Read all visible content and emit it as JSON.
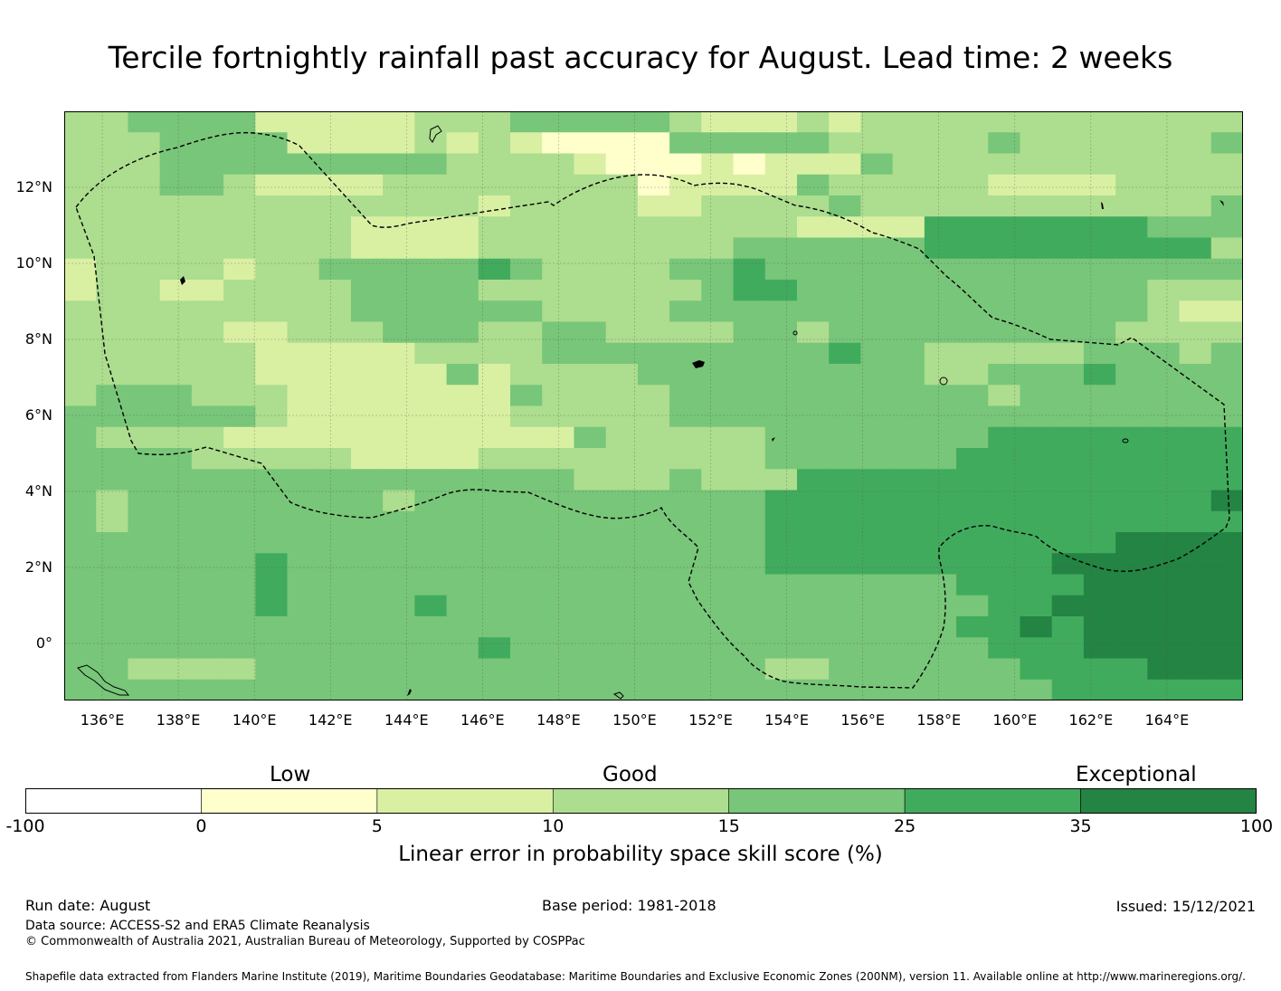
{
  "title": "Tercile fortnightly rainfall past accuracy for August. Lead time: 2 weeks",
  "map": {
    "lon_range": [
      135,
      166
    ],
    "lat_range": [
      -1.5,
      14
    ],
    "lon_ticks": [
      "136°E",
      "138°E",
      "140°E",
      "142°E",
      "144°E",
      "146°E",
      "148°E",
      "150°E",
      "152°E",
      "154°E",
      "156°E",
      "158°E",
      "160°E",
      "162°E",
      "164°E"
    ],
    "lat_ticks": [
      "12°N",
      "10°N",
      "8°N",
      "6°N",
      "4°N",
      "2°N",
      "0°"
    ],
    "gridlines": true,
    "boundary_style": "dashed",
    "grid_columns": 37,
    "grid_rows": 28,
    "cells": [
      "3344442222233344444322232333333333333",
      "3334444222232321111444443333343333334",
      "3334444444443333211121222433333333333",
      "3334432222333333331222243333322223333",
      "3333333333333233332233334333333333334",
      "3333333332222333333333322225555555444",
      "3333333332222333333334444445555555553",
      "2333323344444543333445444444444444444",
      "2332233334444333333345544444444444333",
      "3333333334444443333444444444444444322",
      "3333322333444334433334434444444443333",
      "3333332222233334444444445443333344434",
      "3333332222224233334444444443344454444",
      "3444333222222243333444444444434444444",
      "4444443222222233333444444444444444444",
      "4333322222222222433333444444455555555",
      "4444333332222333333333444444555555555",
      "4444444444444444333433355555555555555",
      "4344444444344444444444555555555555556",
      "4344444444444444444444555555555555555",
      "4444444444444444444444555555555556666",
      "4444445444444444444444555555555666666",
      "4444445444444444444444444444555566666",
      "4444445444454444444444444444455666666",
      "4444444444444444444444444444556566666",
      "4444444444444544444444444444455566666",
      "4433334444444444444444334444445555666",
      "4444444444444444444444444444444555555"
    ]
  },
  "colorbar": {
    "colors": [
      "#ffffff",
      "#ffffcc",
      "#d9f0a3",
      "#addd8e",
      "#78c679",
      "#41ab5d",
      "#238443"
    ],
    "ticks": [
      "-100",
      "0",
      "5",
      "10",
      "15",
      "25",
      "35",
      "100"
    ],
    "categories": [
      "Low",
      "Good",
      "Exceptional"
    ],
    "label": "Linear error in probability space skill score (%)"
  },
  "footer": {
    "run_date": "Run date: August",
    "base_period": "Base period: 1981-2018",
    "issued": "Issued: 15/12/2021",
    "data_source": "Data source: ACCESS-S2 and ERA5 Climate Reanalysis",
    "copyright": "© Commonwealth of Australia 2021, Australian Bureau of Meteorology, Supported by COSPPac",
    "shapefile": "Shapefile data extracted from Flanders Marine Institute (2019), Maritime Boundaries Geodatabase: Maritime Boundaries and Exclusive Economic Zones (200NM), version 11. Available online at http://www.marineregions.org/."
  }
}
